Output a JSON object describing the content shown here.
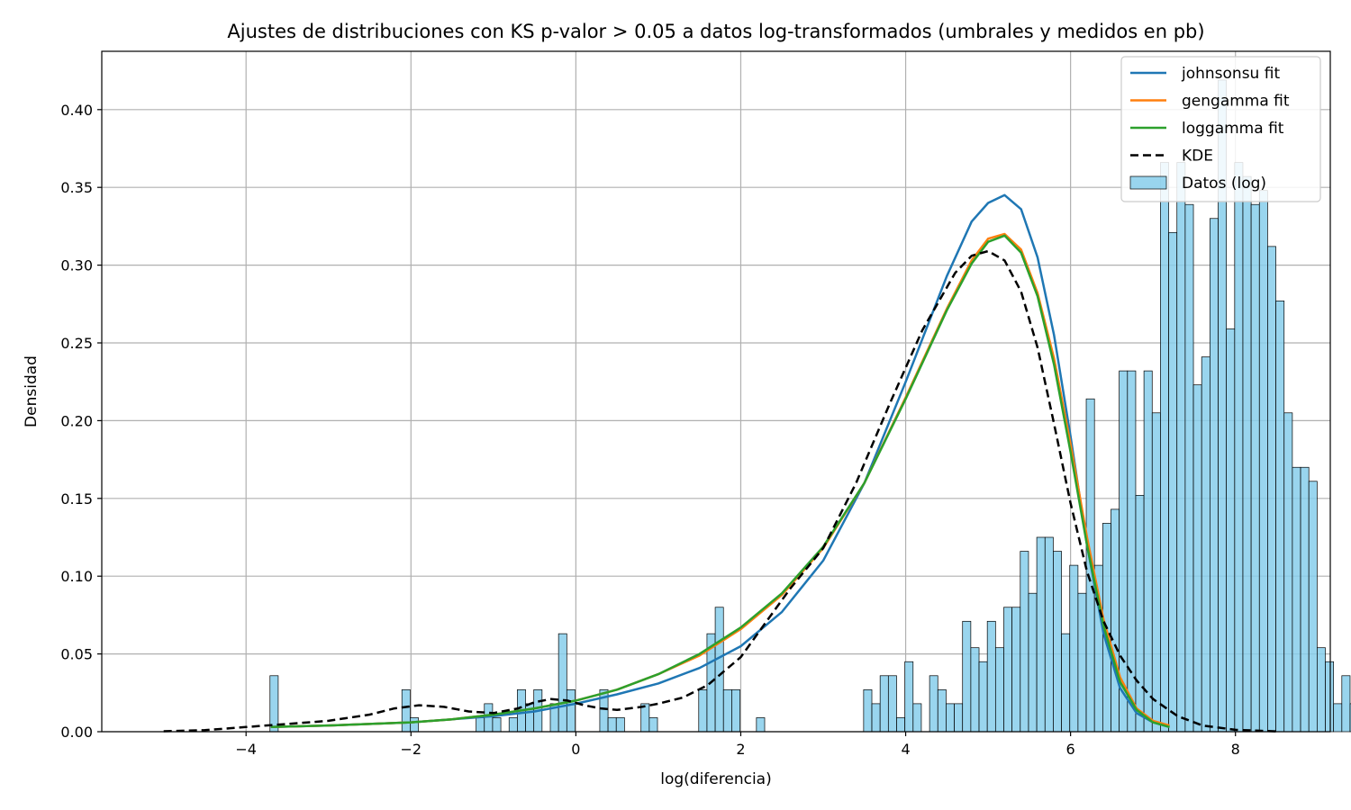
{
  "chart_data": {
    "type": "histogram",
    "title": "Ajustes de distribuciones con KS p-valor > 0.05 a datos log-transformados (umbrales y medidos en pb)",
    "xlabel": "log(diferencia)",
    "ylabel": "Densidad",
    "xlim": [
      -5.75,
      9.15
    ],
    "ylim": [
      0,
      0.4375
    ],
    "xticks": [
      -4,
      -2,
      0,
      2,
      4,
      6,
      8
    ],
    "xtick_labels": [
      "−4",
      "−2",
      "0",
      "2",
      "4",
      "6",
      "8"
    ],
    "yticks": [
      0,
      0.05,
      0.1,
      0.15,
      0.2,
      0.25,
      0.3,
      0.35,
      0.4
    ],
    "ytick_labels": [
      "0.00",
      "0.05",
      "0.10",
      "0.15",
      "0.20",
      "0.25",
      "0.30",
      "0.35",
      "0.40"
    ],
    "grid": true,
    "legend_position": "top-right",
    "histogram": {
      "name": "Datos (log)",
      "color": "#87ceeb",
      "x_start": -3.71,
      "bin_width": 0.1,
      "values": [
        0.036,
        0,
        0,
        0,
        0,
        0,
        0,
        0,
        0,
        0,
        0,
        0,
        0,
        0,
        0,
        0,
        0.027,
        0.009,
        0,
        0,
        0,
        0,
        0,
        0,
        0,
        0.009,
        0.018,
        0.009,
        0,
        0.009,
        0.027,
        0.018,
        0.027,
        0,
        0.018,
        0.063,
        0.027,
        0,
        0,
        0,
        0.027,
        0.009,
        0.009,
        0,
        0,
        0.018,
        0.009,
        0,
        0,
        0,
        0,
        0,
        0.027,
        0.063,
        0.08,
        0.027,
        0.027,
        0,
        0,
        0.009,
        0,
        0,
        0,
        0,
        0,
        0,
        0,
        0,
        0,
        0,
        0,
        0,
        0.027,
        0.018,
        0.036,
        0.036,
        0.009,
        0.045,
        0.018,
        0,
        0.036,
        0.027,
        0.018,
        0.018,
        0.071,
        0.054,
        0.045,
        0.071,
        0.054,
        0.08,
        0.08,
        0.116,
        0.089,
        0.125,
        0.125,
        0.116,
        0.063,
        0.107,
        0.089,
        0.214,
        0.107,
        0.134,
        0.143,
        0.232,
        0.232,
        0.152,
        0.232,
        0.205,
        0.366,
        0.321,
        0.366,
        0.339,
        0.223,
        0.241,
        0.33,
        0.419,
        0.259,
        0.366,
        0.357,
        0.339,
        0.348,
        0.312,
        0.277,
        0.205,
        0.17,
        0.17,
        0.161,
        0.054,
        0.045,
        0.018,
        0.036,
        0.018,
        0.009,
        0.018
      ]
    },
    "series": [
      {
        "name": "johnsonsu fit",
        "color": "#1f77b4",
        "style": "solid",
        "x": [
          -3.7,
          -3,
          -2.5,
          -2,
          -1.5,
          -1,
          -0.5,
          0,
          0.5,
          1,
          1.5,
          2,
          2.5,
          3,
          3.5,
          4,
          4.5,
          4.8,
          5.0,
          5.2,
          5.4,
          5.6,
          5.8,
          6.0,
          6.2,
          6.4,
          6.6,
          6.8,
          7.0,
          7.2
        ],
        "y": [
          0.003,
          0.004,
          0.005,
          0.006,
          0.008,
          0.01,
          0.013,
          0.018,
          0.024,
          0.031,
          0.041,
          0.055,
          0.077,
          0.11,
          0.16,
          0.225,
          0.293,
          0.328,
          0.34,
          0.345,
          0.336,
          0.305,
          0.255,
          0.19,
          0.12,
          0.063,
          0.028,
          0.012,
          0.006,
          0.003
        ]
      },
      {
        "name": "gengamma fit",
        "color": "#ff7f0e",
        "style": "solid",
        "x": [
          -3.7,
          -3,
          -2.5,
          -2,
          -1.5,
          -1,
          -0.5,
          0,
          0.5,
          1,
          1.5,
          2,
          2.5,
          3,
          3.5,
          4,
          4.5,
          4.8,
          5.0,
          5.2,
          5.4,
          5.6,
          5.8,
          6.0,
          6.2,
          6.4,
          6.6,
          6.8,
          7.0,
          7.2
        ],
        "y": [
          0.003,
          0.004,
          0.005,
          0.006,
          0.008,
          0.011,
          0.015,
          0.02,
          0.027,
          0.037,
          0.049,
          0.066,
          0.088,
          0.118,
          0.16,
          0.215,
          0.272,
          0.303,
          0.317,
          0.32,
          0.31,
          0.282,
          0.24,
          0.185,
          0.125,
          0.072,
          0.035,
          0.015,
          0.007,
          0.004
        ]
      },
      {
        "name": "loggamma fit",
        "color": "#2ca02c",
        "style": "solid",
        "x": [
          -3.7,
          -3,
          -2.5,
          -2,
          -1.5,
          -1,
          -0.5,
          0,
          0.5,
          1,
          1.5,
          2,
          2.5,
          3,
          3.5,
          4,
          4.5,
          4.8,
          5.0,
          5.2,
          5.4,
          5.6,
          5.8,
          6.0,
          6.2,
          6.4,
          6.6,
          6.8,
          7.0,
          7.2
        ],
        "y": [
          0.003,
          0.004,
          0.005,
          0.006,
          0.008,
          0.011,
          0.015,
          0.02,
          0.027,
          0.037,
          0.05,
          0.067,
          0.089,
          0.119,
          0.16,
          0.214,
          0.271,
          0.301,
          0.315,
          0.319,
          0.308,
          0.28,
          0.236,
          0.18,
          0.12,
          0.068,
          0.032,
          0.014,
          0.006,
          0.003
        ]
      },
      {
        "name": "KDE",
        "color": "#000000",
        "style": "dashed",
        "x": [
          -5.0,
          -4.5,
          -4.0,
          -3.5,
          -3.0,
          -2.5,
          -2.2,
          -1.9,
          -1.6,
          -1.3,
          -1.0,
          -0.7,
          -0.5,
          -0.3,
          -0.1,
          0.1,
          0.3,
          0.5,
          0.8,
          1.0,
          1.3,
          1.6,
          2.0,
          2.3,
          2.6,
          3.0,
          3.4,
          3.8,
          4.2,
          4.6,
          4.8,
          5.0,
          5.2,
          5.4,
          5.6,
          5.8,
          6.0,
          6.2,
          6.4,
          6.6,
          6.8,
          7.0,
          7.3,
          7.6,
          8.0,
          8.5
        ],
        "y": [
          0.0003,
          0.001,
          0.003,
          0.005,
          0.007,
          0.011,
          0.015,
          0.017,
          0.016,
          0.013,
          0.012,
          0.015,
          0.019,
          0.021,
          0.02,
          0.017,
          0.015,
          0.014,
          0.016,
          0.018,
          0.022,
          0.03,
          0.048,
          0.07,
          0.092,
          0.118,
          0.16,
          0.21,
          0.258,
          0.295,
          0.306,
          0.309,
          0.303,
          0.283,
          0.247,
          0.198,
          0.147,
          0.103,
          0.071,
          0.049,
          0.033,
          0.021,
          0.01,
          0.004,
          0.0012,
          0.0002
        ]
      }
    ],
    "legend": [
      "johnsonsu fit",
      "gengamma fit",
      "loggamma fit",
      "KDE",
      "Datos (log)"
    ]
  }
}
